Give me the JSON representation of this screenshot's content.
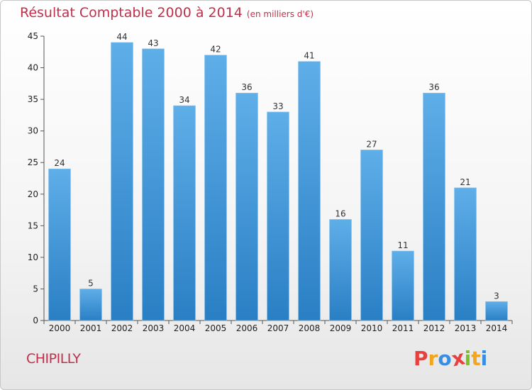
{
  "header": {
    "title": "Résultat Comptable 2000 à 2014",
    "subtitle": "(en milliers d'€)"
  },
  "footer": {
    "commune": "CHIPILLY",
    "logo": [
      "P",
      "r",
      "o",
      "x",
      "i",
      "t",
      "i"
    ]
  },
  "colors": {
    "accent": "#c0304a",
    "bar_light": "#5eaee8",
    "bar_dark": "#2a7fc4",
    "logo": [
      "#e8403c",
      "#f3a51e",
      "#3a8ee0",
      "#e8403c",
      "#7bbf2a",
      "#f3a51e",
      "#3a8ee0"
    ]
  },
  "chart_data": {
    "type": "bar",
    "title": "Résultat Comptable 2000 à 2014",
    "subtitle": "(en milliers d'€)",
    "xlabel": "",
    "ylabel": "",
    "categories": [
      "2000",
      "2001",
      "2002",
      "2003",
      "2004",
      "2005",
      "2006",
      "2007",
      "2008",
      "2009",
      "2010",
      "2011",
      "2012",
      "2013",
      "2014"
    ],
    "values": [
      24,
      5,
      44,
      43,
      34,
      42,
      36,
      33,
      41,
      16,
      27,
      11,
      36,
      21,
      3
    ],
    "ylim": [
      0,
      45
    ],
    "yticks": [
      "0",
      "5",
      "10",
      "15",
      "20",
      "25",
      "30",
      "35",
      "40",
      "45"
    ],
    "grid": false
  }
}
